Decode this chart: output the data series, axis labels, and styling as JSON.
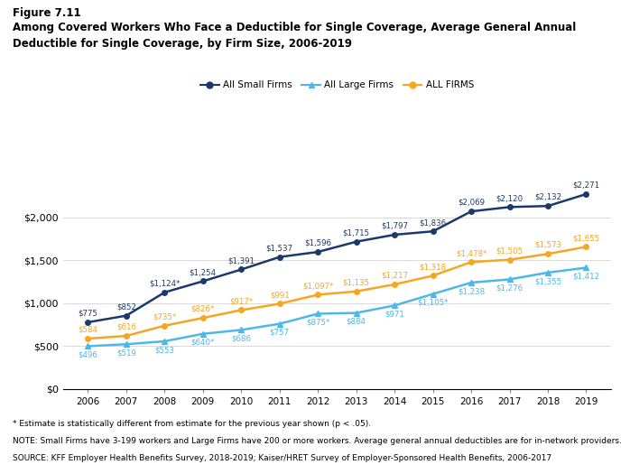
{
  "years": [
    2006,
    2007,
    2008,
    2009,
    2010,
    2011,
    2012,
    2013,
    2014,
    2015,
    2016,
    2017,
    2018,
    2019
  ],
  "small_firms": [
    775,
    852,
    1124,
    1254,
    1391,
    1537,
    1596,
    1715,
    1797,
    1836,
    2069,
    2120,
    2132,
    2271
  ],
  "large_firms": [
    496,
    519,
    553,
    640,
    686,
    757,
    875,
    884,
    971,
    1105,
    1238,
    1276,
    1355,
    1412
  ],
  "all_firms": [
    584,
    616,
    735,
    826,
    917,
    991,
    1097,
    1135,
    1217,
    1318,
    1478,
    1505,
    1573,
    1655
  ],
  "small_firms_labels": [
    "$775",
    "$852",
    "$1,124*",
    "$1,254",
    "$1,391",
    "$1,537",
    "$1,596",
    "$1,715",
    "$1,797",
    "$1,836",
    "$2,069",
    "$2,120",
    "$2,132",
    "$2,271"
  ],
  "large_firms_labels": [
    "$496",
    "$519",
    "$553",
    "$640*",
    "$686",
    "$757",
    "$875*",
    "$884",
    "$971",
    "$1,105*",
    "$1,238",
    "$1,276",
    "$1,355",
    "$1,412"
  ],
  "all_firms_labels": [
    "$584",
    "$616",
    "$735*",
    "$826*",
    "$917*",
    "$991",
    "$1,097*",
    "$1,135",
    "$1,217",
    "$1,318",
    "$1,478*",
    "$1,505",
    "$1,573",
    "$1,655"
  ],
  "small_color": "#1a3a6b",
  "large_color": "#4db8e8",
  "all_color": "#f5a623",
  "figure_label": "Figure 7.11",
  "title_line1": "Among Covered Workers Who Face a Deductible for Single Coverage, Average General Annual",
  "title_line2": "Deductible for Single Coverage, by Firm Size, 2006-2019",
  "legend_labels": [
    "All Small Firms",
    "All Large Firms",
    "ALL FIRMS"
  ],
  "note1": "* Estimate is statistically different from estimate for the previous year shown (p < .05).",
  "note2": "NOTE: Small Firms have 3-199 workers and Large Firms have 200 or more workers. Average general annual deductibles are for in-network providers.",
  "note3": "SOURCE: KFF Employer Health Benefits Survey, 2018-2019; Kaiser/HRET Survey of Employer-Sponsored Health Benefits, 2006-2017",
  "ylim": [
    0,
    2600
  ],
  "yticks": [
    0,
    500,
    1000,
    1500,
    2000
  ],
  "background_color": "#ffffff"
}
